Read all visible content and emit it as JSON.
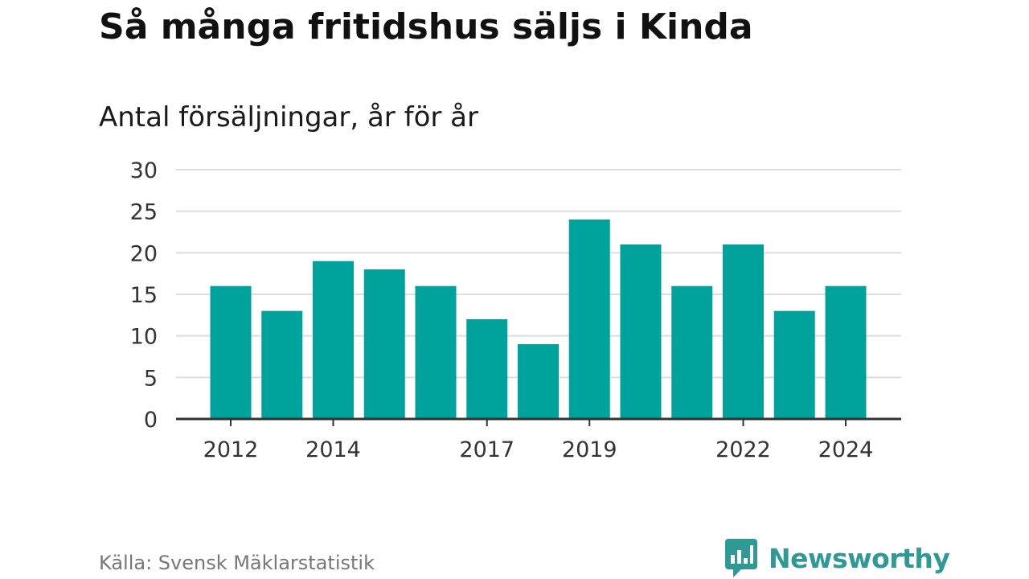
{
  "title": "Så många fritidshus säljs i Kinda",
  "subtitle": "Antal försäljningar, år för år",
  "source": "Källa: Svensk Mäklarstatistik",
  "brand": {
    "name": "Newsworthy",
    "icon": "bar-chart-speech-bubble-icon",
    "color": "#2f9a95"
  },
  "colors": {
    "bar": "#00a39b",
    "grid": "#dddddd",
    "axis": "#333333",
    "tick_text": "#333333"
  },
  "chart_data": {
    "type": "bar",
    "title": "Så många fritidshus säljs i Kinda",
    "subtitle": "Antal försäljningar, år för år",
    "categories": [
      "2012",
      "2013",
      "2014",
      "2015",
      "2016",
      "2017",
      "2018",
      "2019",
      "2020",
      "2021",
      "2022",
      "2023",
      "2024"
    ],
    "values": [
      16,
      13,
      19,
      18,
      16,
      12,
      9,
      24,
      21,
      16,
      21,
      13,
      16
    ],
    "x_tick_labels": [
      "2012",
      "2014",
      "2017",
      "2019",
      "2022",
      "2024"
    ],
    "y_ticks": [
      0,
      5,
      10,
      15,
      20,
      25,
      30
    ],
    "ylim": [
      0,
      30
    ],
    "grid": true,
    "legend": "none",
    "xlabel": "",
    "ylabel": ""
  }
}
